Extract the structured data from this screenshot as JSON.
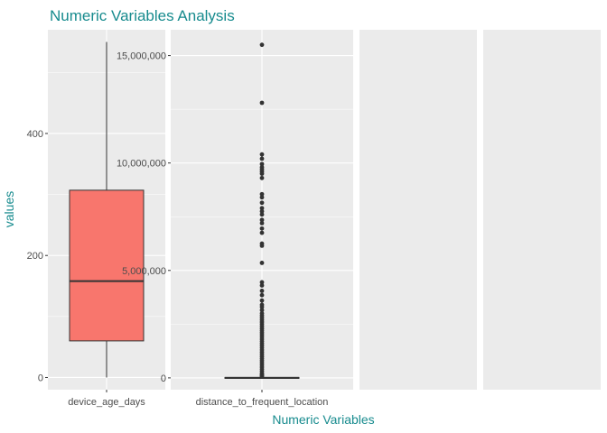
{
  "chart_data": {
    "type": "boxplot",
    "title": "Numeric Variables Analysis",
    "xlabel": "Numeric Variables",
    "ylabel": "values",
    "colors": {
      "box_fill": "#f8766d",
      "panel_bg": "#ebebeb",
      "grid": "#ffffff",
      "title": "#178b8e",
      "stroke": "#333333"
    },
    "panels": [
      {
        "category": "device_age_days",
        "ylim": [
          -20,
          570
        ],
        "yticks": [
          0,
          200,
          400
        ],
        "ytick_labels": [
          "0",
          "200",
          "400"
        ],
        "box": {
          "min": 0,
          "q1": 60,
          "median": 158,
          "q3": 307,
          "max": 550,
          "filled": true
        },
        "outliers": []
      },
      {
        "category": "distance_to_frequent_location",
        "ylim": [
          -550000,
          16200000
        ],
        "yticks": [
          0,
          5000000,
          10000000,
          15000000
        ],
        "ytick_labels": [
          "0",
          "5,000,000",
          "10,000,000",
          "15,000,000"
        ],
        "box": {
          "min": 0,
          "q1": 0,
          "median": 0,
          "q3": 20000,
          "max": 50000,
          "filled": false
        },
        "outliers": [
          15500000,
          12800000,
          10400000,
          10200000,
          9950000,
          9800000,
          9700000,
          9600000,
          9500000,
          9300000,
          8550000,
          8400000,
          8150000,
          7900000,
          7750000,
          7600000,
          7350000,
          7200000,
          6950000,
          6750000,
          6250000,
          6150000,
          5350000,
          4450000,
          4300000,
          4050000,
          3850000,
          3600000,
          3400000,
          3300000,
          3150000,
          3000000,
          2900000,
          2800000,
          2700000,
          2600000,
          2500000,
          2400000,
          2300000,
          2200000,
          2100000,
          2000000,
          1900000,
          1800000,
          1700000,
          1600000,
          1500000,
          1400000,
          1300000,
          1200000,
          1100000,
          1000000,
          900000,
          800000,
          700000,
          600000,
          500000,
          400000,
          300000,
          200000,
          150000,
          100000,
          70000
        ]
      },
      {
        "category": "",
        "empty": true
      },
      {
        "category": "",
        "empty": true
      }
    ]
  }
}
